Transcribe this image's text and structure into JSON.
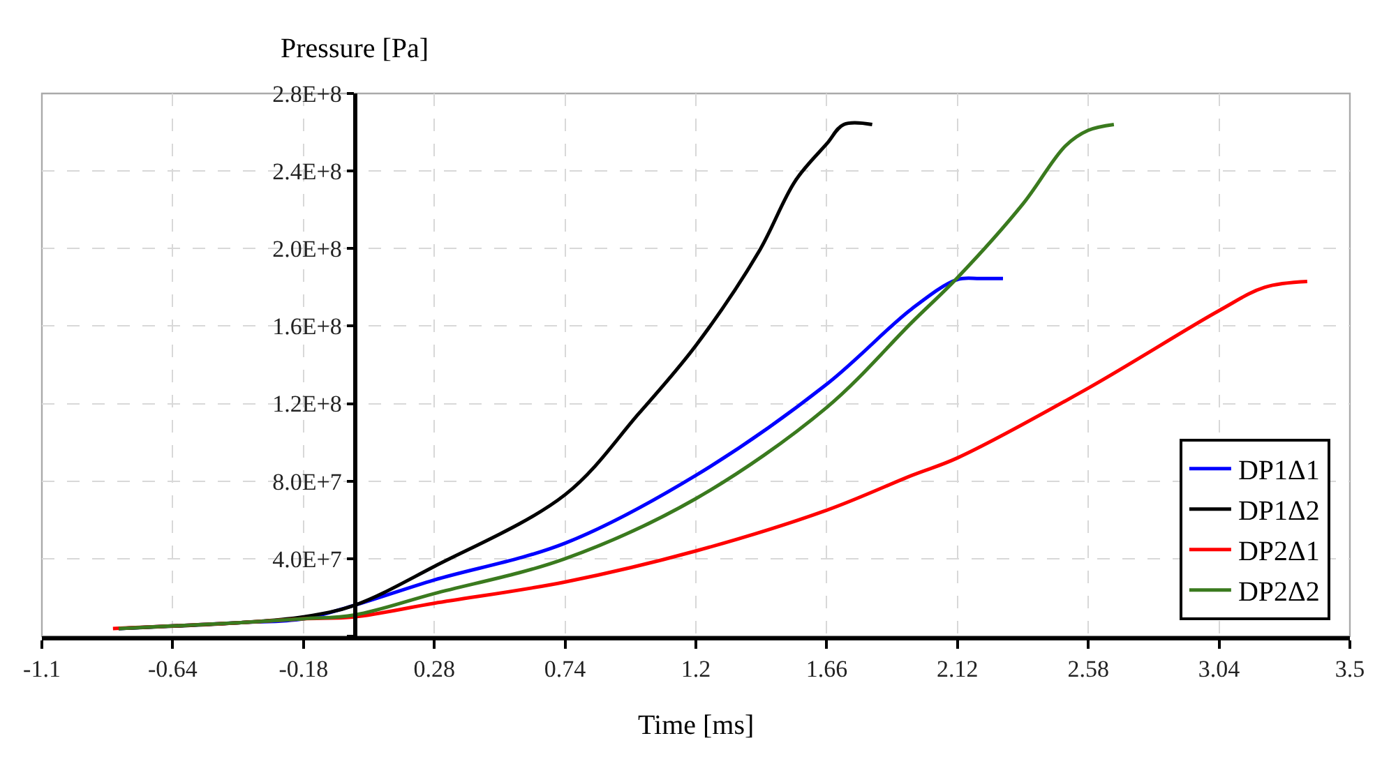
{
  "chart_data": {
    "type": "line",
    "xlabel": "Time [ms]",
    "ylabel": "Pressure [Pa]",
    "xlim": [
      -1.1,
      3.5
    ],
    "xticks": [
      -1.1,
      -0.64,
      -0.18,
      0.28,
      0.74,
      1.2,
      1.66,
      2.12,
      2.58,
      3.04,
      3.5
    ],
    "ylim": [
      0,
      280000000
    ],
    "yticks": [
      {
        "value": 0,
        "label": null
      },
      {
        "value": 40000000,
        "label": "4.0E+7"
      },
      {
        "value": 80000000,
        "label": "8.0E+7"
      },
      {
        "value": 120000000,
        "label": "1.2E+8"
      },
      {
        "value": 160000000,
        "label": "1.6E+8"
      },
      {
        "value": 200000000,
        "label": "2.0E+8"
      },
      {
        "value": 240000000,
        "label": "2.4E+8"
      },
      {
        "value": 280000000,
        "label": "2.8E+8"
      }
    ],
    "grid": true,
    "legend": "bottom right",
    "marker": "none",
    "line_style": "solid",
    "series": [
      {
        "name": "DP1Δ1",
        "color": "#0000ff",
        "x": [
          -0.83,
          -0.4,
          -0.18,
          0,
          0.28,
          0.74,
          1.2,
          1.66,
          1.96,
          2.12,
          2.2,
          2.28
        ],
        "values": [
          4000000,
          7000000,
          9000000,
          16000000,
          29000000,
          48000000,
          83000000,
          130000000,
          169000000,
          184000000,
          184500000,
          184500000
        ]
      },
      {
        "name": "DP1Δ2",
        "color": "#000000",
        "x": [
          -0.83,
          -0.4,
          -0.18,
          0,
          0.28,
          0.74,
          1.0,
          1.2,
          1.42,
          1.55,
          1.66,
          1.72,
          1.82
        ],
        "values": [
          4000000,
          7000000,
          10000000,
          16000000,
          36000000,
          73000000,
          115000000,
          150000000,
          198000000,
          235000000,
          254000000,
          264000000,
          264000000
        ]
      },
      {
        "name": "DP2Δ1",
        "color": "#ff0000",
        "x": [
          -0.85,
          -0.4,
          -0.18,
          0,
          0.28,
          0.74,
          1.2,
          1.66,
          1.96,
          2.12,
          2.58,
          3.04,
          3.2,
          3.35
        ],
        "values": [
          4000000,
          7000000,
          9000000,
          10000000,
          17000000,
          28000000,
          44000000,
          65000000,
          83000000,
          92000000,
          128000000,
          168000000,
          180000000,
          183000000
        ]
      },
      {
        "name": "DP2Δ2",
        "color": "#3a7a1e",
        "x": [
          -0.83,
          -0.4,
          -0.18,
          0,
          0.28,
          0.74,
          1.2,
          1.66,
          1.96,
          2.12,
          2.35,
          2.5,
          2.58,
          2.67
        ],
        "values": [
          4000000,
          7000000,
          9000000,
          11000000,
          22000000,
          40000000,
          71000000,
          118000000,
          162000000,
          185000000,
          223000000,
          253000000,
          261000000,
          264000000
        ]
      }
    ]
  }
}
